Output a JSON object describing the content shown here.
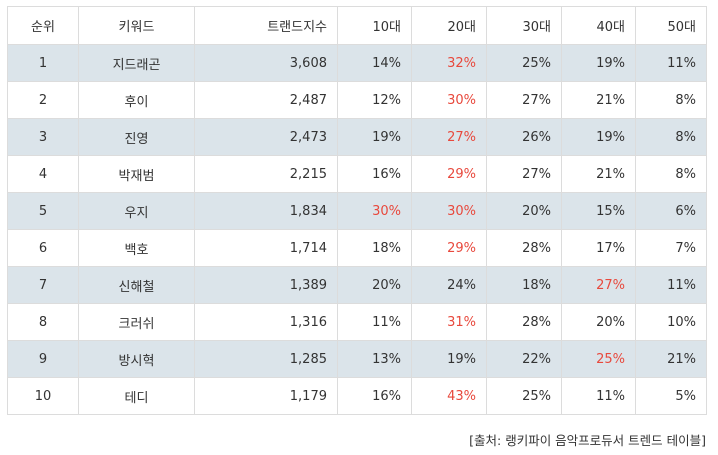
{
  "headers": [
    "순위",
    "키워드",
    "트랜드지수",
    "10대",
    "20대",
    "30대",
    "40대",
    "50대"
  ],
  "rows": [
    {
      "rank": "1",
      "keyword": "지드래곤",
      "index": "3,608",
      "a10": "14%",
      "a20": "32%",
      "a30": "25%",
      "a40": "19%",
      "a50": "11%"
    },
    {
      "rank": "2",
      "keyword": "후이",
      "index": "2,487",
      "a10": "12%",
      "a20": "30%",
      "a30": "27%",
      "a40": "21%",
      "a50": "8%"
    },
    {
      "rank": "3",
      "keyword": "진영",
      "index": "2,473",
      "a10": "19%",
      "a20": "27%",
      "a30": "26%",
      "a40": "19%",
      "a50": "8%"
    },
    {
      "rank": "4",
      "keyword": "박재범",
      "index": "2,215",
      "a10": "16%",
      "a20": "29%",
      "a30": "27%",
      "a40": "21%",
      "a50": "8%"
    },
    {
      "rank": "5",
      "keyword": "우지",
      "index": "1,834",
      "a10": "30%",
      "a20": "30%",
      "a30": "20%",
      "a40": "15%",
      "a50": "6%"
    },
    {
      "rank": "6",
      "keyword": "백호",
      "index": "1,714",
      "a10": "18%",
      "a20": "29%",
      "a30": "28%",
      "a40": "17%",
      "a50": "7%"
    },
    {
      "rank": "7",
      "keyword": "신해철",
      "index": "1,389",
      "a10": "20%",
      "a20": "24%",
      "a30": "18%",
      "a40": "27%",
      "a50": "11%"
    },
    {
      "rank": "8",
      "keyword": "크러쉬",
      "index": "1,316",
      "a10": "11%",
      "a20": "31%",
      "a30": "28%",
      "a40": "20%",
      "a50": "10%"
    },
    {
      "rank": "9",
      "keyword": "방시혁",
      "index": "1,285",
      "a10": "13%",
      "a20": "19%",
      "a30": "22%",
      "a40": "25%",
      "a50": "21%"
    },
    {
      "rank": "10",
      "keyword": "테디",
      "index": "1,179",
      "a10": "16%",
      "a20": "43%",
      "a30": "25%",
      "a40": "11%",
      "a50": "5%"
    }
  ],
  "source": "[출처: 랭키파이 음악프로듀서 트렌드 테이블]",
  "colors": {
    "highlight": "#e8493d",
    "shade": "#dbe4ea",
    "border": "#dcdcdc"
  }
}
